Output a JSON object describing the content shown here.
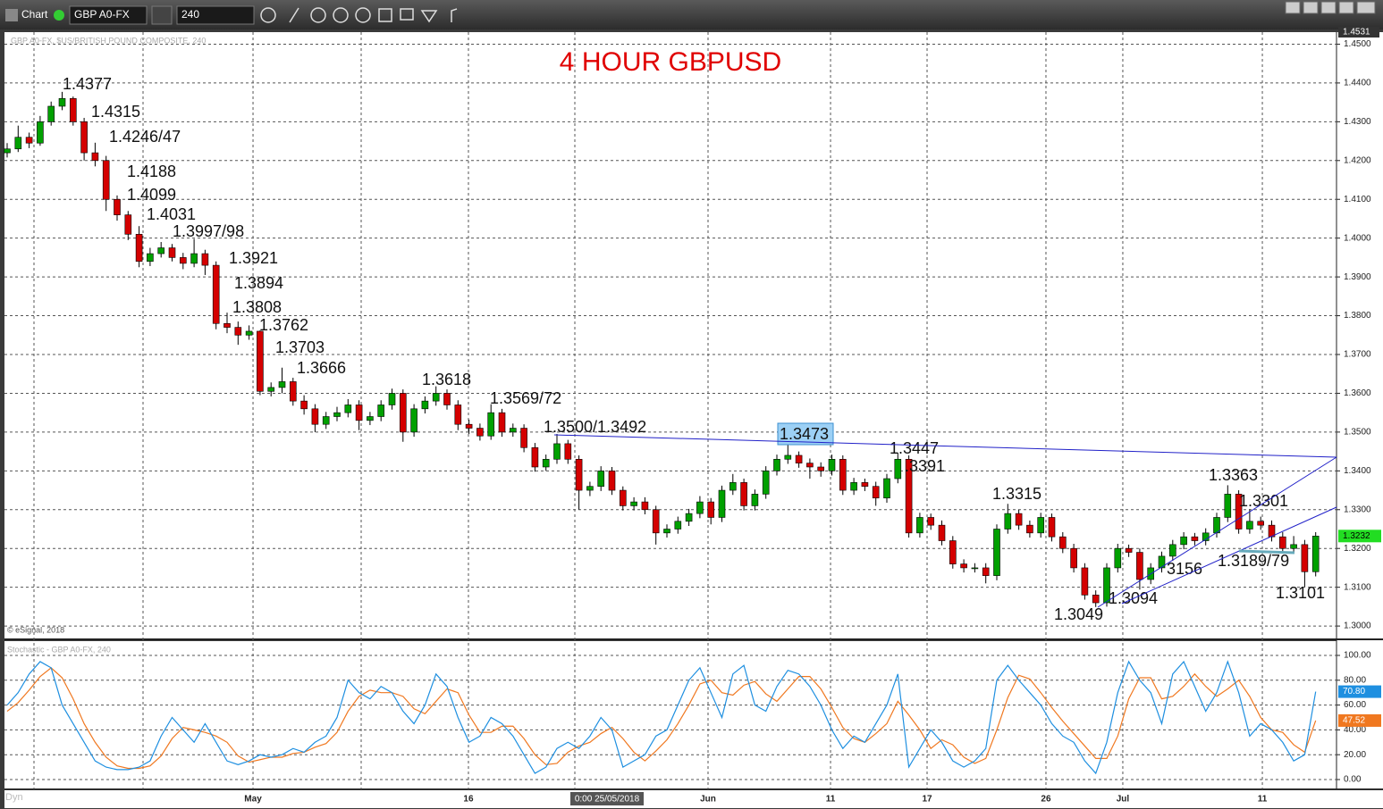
{
  "toolbar": {
    "chart_label": "Chart",
    "symbol": "GBP A0-FX",
    "interval": "240"
  },
  "cursor_label": "0:00 25/05/2018",
  "dyn_label": "Dyn",
  "chart_data": [
    {
      "type": "candlestick",
      "title": "4 HOUR GBPUSD",
      "subtitle": "GBP A0-FX, $US/BRITISH POUND COMPOSITE, 240",
      "copyright": "© eSignal, 2018",
      "up_color": "#00a000",
      "down_color": "#d40000",
      "ylim": [
        1.2968,
        1.4531
      ],
      "yticks": [
        {
          "value": 1.3,
          "label": "1.3000"
        },
        {
          "value": 1.31,
          "label": "1.3100"
        },
        {
          "value": 1.32,
          "label": "1.3200"
        },
        {
          "value": 1.33,
          "label": "1.3300"
        },
        {
          "value": 1.34,
          "label": "1.3400"
        },
        {
          "value": 1.35,
          "label": "1.3500"
        },
        {
          "value": 1.36,
          "label": "1.3600"
        },
        {
          "value": 1.37,
          "label": "1.3700"
        },
        {
          "value": 1.38,
          "label": "1.3800"
        },
        {
          "value": 1.39,
          "label": "1.3900"
        },
        {
          "value": 1.4,
          "label": "1.4000"
        },
        {
          "value": 1.41,
          "label": "1.4100"
        },
        {
          "value": 1.42,
          "label": "1.4200"
        },
        {
          "value": 1.43,
          "label": "1.4300"
        },
        {
          "value": 1.44,
          "label": "1.4400"
        },
        {
          "value": 1.45,
          "label": "1.4500"
        }
      ],
      "xticks": [
        {
          "value": 22.36,
          "label": "May"
        },
        {
          "value": 41.95,
          "label": "16"
        },
        {
          "value": 63.74,
          "label": "Jun"
        },
        {
          "value": 74.88,
          "label": "11"
        },
        {
          "value": 83.66,
          "label": "17"
        },
        {
          "value": 94.47,
          "label": "26"
        },
        {
          "value": 101.46,
          "label": "Jul"
        },
        {
          "value": 114.15,
          "label": "11"
        }
      ],
      "candles": [
        [
          1.422,
          1.4245,
          1.4208,
          1.423
        ],
        [
          1.423,
          1.429,
          1.4222,
          1.426
        ],
        [
          1.426,
          1.4272,
          1.4232,
          1.4245
        ],
        [
          1.4245,
          1.4315,
          1.4238,
          1.43
        ],
        [
          1.43,
          1.4352,
          1.429,
          1.434
        ],
        [
          1.434,
          1.4377,
          1.433,
          1.436
        ],
        [
          1.436,
          1.4365,
          1.429,
          1.43
        ],
        [
          1.43,
          1.431,
          1.42,
          1.422
        ],
        [
          1.422,
          1.4246,
          1.4185,
          1.42
        ],
        [
          1.42,
          1.4212,
          1.407,
          1.41
        ],
        [
          1.41,
          1.411,
          1.4045,
          1.406
        ],
        [
          1.406,
          1.407,
          1.3995,
          1.401
        ],
        [
          1.401,
          1.4031,
          1.3925,
          1.394
        ],
        [
          1.394,
          1.3975,
          1.3928,
          1.396
        ],
        [
          1.396,
          1.399,
          1.395,
          1.3975
        ],
        [
          1.3975,
          1.3985,
          1.394,
          1.395
        ],
        [
          1.395,
          1.3962,
          1.392,
          1.3935
        ],
        [
          1.3935,
          1.3998,
          1.3925,
          1.396
        ],
        [
          1.396,
          1.397,
          1.3905,
          1.393
        ],
        [
          1.393,
          1.394,
          1.3765,
          1.378
        ],
        [
          1.378,
          1.3808,
          1.3755,
          1.377
        ],
        [
          1.377,
          1.3785,
          1.3725,
          1.375
        ],
        [
          1.375,
          1.3775,
          1.3738,
          1.376
        ],
        [
          1.376,
          1.3762,
          1.3595,
          1.3605
        ],
        [
          1.3605,
          1.3628,
          1.3592,
          1.3615
        ],
        [
          1.3615,
          1.3666,
          1.36,
          1.363
        ],
        [
          1.363,
          1.364,
          1.3568,
          1.358
        ],
        [
          1.358,
          1.3595,
          1.3545,
          1.356
        ],
        [
          1.356,
          1.3572,
          1.35,
          1.352
        ],
        [
          1.352,
          1.3552,
          1.3508,
          1.354
        ],
        [
          1.354,
          1.3565,
          1.3528,
          1.355
        ],
        [
          1.355,
          1.3585,
          1.3538,
          1.357
        ],
        [
          1.357,
          1.3582,
          1.3505,
          1.353
        ],
        [
          1.353,
          1.3552,
          1.3518,
          1.354
        ],
        [
          1.354,
          1.3582,
          1.3528,
          1.357
        ],
        [
          1.357,
          1.3612,
          1.3558,
          1.36
        ],
        [
          1.36,
          1.361,
          1.3475,
          1.35
        ],
        [
          1.35,
          1.3572,
          1.3488,
          1.356
        ],
        [
          1.356,
          1.3592,
          1.3548,
          1.358
        ],
        [
          1.358,
          1.3618,
          1.3568,
          1.36
        ],
        [
          1.36,
          1.361,
          1.3558,
          1.357
        ],
        [
          1.357,
          1.3582,
          1.3505,
          1.352
        ],
        [
          1.352,
          1.3532,
          1.3495,
          1.351
        ],
        [
          1.351,
          1.3522,
          1.3478,
          1.349
        ],
        [
          1.349,
          1.3572,
          1.348,
          1.355
        ],
        [
          1.355,
          1.356,
          1.3488,
          1.35
        ],
        [
          1.35,
          1.3522,
          1.3488,
          1.351
        ],
        [
          1.351,
          1.352,
          1.3448,
          1.346
        ],
        [
          1.346,
          1.3472,
          1.3398,
          1.341
        ],
        [
          1.341,
          1.3442,
          1.34,
          1.343
        ],
        [
          1.343,
          1.3495,
          1.3418,
          1.347
        ],
        [
          1.347,
          1.348,
          1.3418,
          1.343
        ],
        [
          1.343,
          1.344,
          1.33,
          1.335
        ],
        [
          1.335,
          1.3372,
          1.3335,
          1.336
        ],
        [
          1.336,
          1.3412,
          1.3348,
          1.34
        ],
        [
          1.34,
          1.341,
          1.3338,
          1.335
        ],
        [
          1.335,
          1.336,
          1.3298,
          1.331
        ],
        [
          1.331,
          1.3332,
          1.3298,
          1.332
        ],
        [
          1.332,
          1.3332,
          1.3288,
          1.33
        ],
        [
          1.33,
          1.331,
          1.321,
          1.324
        ],
        [
          1.324,
          1.3262,
          1.3228,
          1.325
        ],
        [
          1.325,
          1.3282,
          1.3238,
          1.327
        ],
        [
          1.327,
          1.3302,
          1.3258,
          1.329
        ],
        [
          1.329,
          1.3335,
          1.3278,
          1.332
        ],
        [
          1.332,
          1.333,
          1.3262,
          1.328
        ],
        [
          1.328,
          1.3362,
          1.3268,
          1.335
        ],
        [
          1.335,
          1.3392,
          1.3338,
          1.337
        ],
        [
          1.337,
          1.338,
          1.3298,
          1.331
        ],
        [
          1.331,
          1.3352,
          1.3298,
          1.334
        ],
        [
          1.334,
          1.3412,
          1.3328,
          1.34
        ],
        [
          1.34,
          1.3442,
          1.3388,
          1.343
        ],
        [
          1.343,
          1.3473,
          1.3418,
          1.344
        ],
        [
          1.344,
          1.345,
          1.3408,
          1.342
        ],
        [
          1.342,
          1.3432,
          1.338,
          1.341
        ],
        [
          1.341,
          1.3422,
          1.3385,
          1.34
        ],
        [
          1.34,
          1.3442,
          1.3388,
          1.343
        ],
        [
          1.343,
          1.344,
          1.3338,
          1.335
        ],
        [
          1.335,
          1.3382,
          1.3338,
          1.337
        ],
        [
          1.337,
          1.338,
          1.3348,
          1.336
        ],
        [
          1.336,
          1.3372,
          1.331,
          1.333
        ],
        [
          1.333,
          1.3392,
          1.3318,
          1.338
        ],
        [
          1.338,
          1.3447,
          1.3368,
          1.343
        ],
        [
          1.343,
          1.344,
          1.3228,
          1.324
        ],
        [
          1.324,
          1.3292,
          1.3228,
          1.328
        ],
        [
          1.328,
          1.329,
          1.3248,
          1.326
        ],
        [
          1.326,
          1.3272,
          1.3208,
          1.322
        ],
        [
          1.322,
          1.3232,
          1.3148,
          1.316
        ],
        [
          1.316,
          1.3172,
          1.3138,
          1.315
        ],
        [
          1.315,
          1.3162,
          1.3138,
          1.315
        ],
        [
          1.315,
          1.3162,
          1.311,
          1.313
        ],
        [
          1.313,
          1.3262,
          1.3118,
          1.325
        ],
        [
          1.325,
          1.3315,
          1.3238,
          1.329
        ],
        [
          1.329,
          1.33,
          1.3248,
          1.326
        ],
        [
          1.326,
          1.3272,
          1.3228,
          1.324
        ],
        [
          1.324,
          1.3292,
          1.3228,
          1.328
        ],
        [
          1.328,
          1.329,
          1.3218,
          1.323
        ],
        [
          1.323,
          1.3242,
          1.3188,
          1.32
        ],
        [
          1.32,
          1.3212,
          1.3138,
          1.315
        ],
        [
          1.315,
          1.3162,
          1.3068,
          1.308
        ],
        [
          1.308,
          1.3092,
          1.3049,
          1.306
        ],
        [
          1.306,
          1.3162,
          1.305,
          1.315
        ],
        [
          1.315,
          1.3212,
          1.3138,
          1.32
        ],
        [
          1.32,
          1.321,
          1.3178,
          1.319
        ],
        [
          1.319,
          1.32,
          1.3094,
          1.312
        ],
        [
          1.312,
          1.3162,
          1.3108,
          1.315
        ],
        [
          1.315,
          1.3192,
          1.3138,
          1.318
        ],
        [
          1.318,
          1.3222,
          1.3168,
          1.321
        ],
        [
          1.321,
          1.3242,
          1.3198,
          1.323
        ],
        [
          1.323,
          1.324,
          1.3208,
          1.322
        ],
        [
          1.322,
          1.3252,
          1.3208,
          1.324
        ],
        [
          1.324,
          1.3292,
          1.3228,
          1.328
        ],
        [
          1.328,
          1.3363,
          1.3268,
          1.334
        ],
        [
          1.334,
          1.335,
          1.3238,
          1.325
        ],
        [
          1.325,
          1.3301,
          1.3238,
          1.327
        ],
        [
          1.327,
          1.3282,
          1.3248,
          1.326
        ],
        [
          1.326,
          1.3272,
          1.3218,
          1.323
        ],
        [
          1.323,
          1.3242,
          1.3189,
          1.32
        ],
        [
          1.32,
          1.3232,
          1.3188,
          1.321
        ],
        [
          1.321,
          1.3222,
          1.3101,
          1.314
        ],
        [
          1.314,
          1.3242,
          1.3128,
          1.3232
        ]
      ],
      "annotations": [
        "1.4377",
        "1.4315",
        "1.4246/47",
        "1.4188",
        "1.4099",
        "1.4031",
        "1.3997/98",
        "1.3921",
        "1.3894",
        "1.3808",
        "1.3762",
        "1.3703",
        "1.3666",
        "1.3618",
        "1.3569/72",
        "1.3500/1.3492",
        "1.3473",
        "1.3447",
        ".3391",
        "1.3315",
        "1.3049",
        "1.3094",
        "3156",
        "1.3363",
        "1.3301",
        "1.3189/79",
        "1.3101"
      ]
    },
    {
      "type": "line",
      "title": "Stochastic - GBP A0-FX, 240",
      "ylim": [
        -7.2,
        111.5
      ],
      "yticks": [
        {
          "value": 0,
          "label": "0.00"
        },
        {
          "value": 20,
          "label": "20.00"
        },
        {
          "value": 40,
          "label": "40.00"
        },
        {
          "value": 60,
          "label": "60.00"
        },
        {
          "value": 80,
          "label": "80.00"
        },
        {
          "value": 100,
          "label": "100.00"
        }
      ],
      "series": [
        {
          "color": "#1e8fe0",
          "last_label": "70.80",
          "values": [
            60,
            70,
            85,
            95,
            90,
            60,
            45,
            30,
            15,
            10,
            8,
            8,
            10,
            15,
            35,
            50,
            40,
            30,
            45,
            30,
            15,
            12,
            15,
            20,
            18,
            20,
            25,
            22,
            30,
            35,
            50,
            80,
            70,
            65,
            75,
            70,
            55,
            45,
            60,
            85,
            75,
            50,
            30,
            35,
            50,
            45,
            35,
            20,
            5,
            10,
            25,
            30,
            25,
            35,
            50,
            40,
            10,
            15,
            20,
            35,
            40,
            60,
            80,
            90,
            70,
            50,
            85,
            92,
            60,
            55,
            75,
            88,
            85,
            75,
            60,
            40,
            25,
            35,
            30,
            45,
            60,
            85,
            10,
            25,
            40,
            30,
            15,
            10,
            15,
            25,
            80,
            92,
            80,
            70,
            60,
            45,
            35,
            30,
            15,
            5,
            30,
            70,
            95,
            80,
            70,
            45,
            85,
            95,
            75,
            55,
            70,
            95,
            70,
            35,
            45,
            40,
            30,
            15,
            20,
            70.8
          ]
        },
        {
          "color": "#f07820",
          "last_label": "47.52",
          "values": [
            55,
            62,
            72,
            83,
            90,
            82,
            65,
            45,
            30,
            18,
            11,
            9,
            9,
            11,
            19,
            33,
            42,
            40,
            38,
            35,
            30,
            19,
            14,
            16,
            18,
            18,
            21,
            22,
            26,
            29,
            38,
            55,
            67,
            72,
            70,
            70,
            67,
            57,
            53,
            63,
            73,
            70,
            52,
            38,
            38,
            43,
            43,
            33,
            20,
            12,
            13,
            22,
            27,
            30,
            37,
            42,
            33,
            22,
            15,
            23,
            32,
            45,
            60,
            77,
            80,
            70,
            68,
            76,
            79,
            69,
            63,
            73,
            83,
            83,
            73,
            58,
            42,
            33,
            30,
            37,
            45,
            63,
            52,
            40,
            25,
            32,
            28,
            18,
            13,
            17,
            40,
            66,
            84,
            81,
            70,
            58,
            47,
            37,
            27,
            17,
            17,
            35,
            65,
            82,
            82,
            65,
            67,
            75,
            85,
            75,
            67,
            73,
            80,
            67,
            50,
            40,
            38,
            28,
            22,
            47.52
          ]
        }
      ]
    }
  ]
}
